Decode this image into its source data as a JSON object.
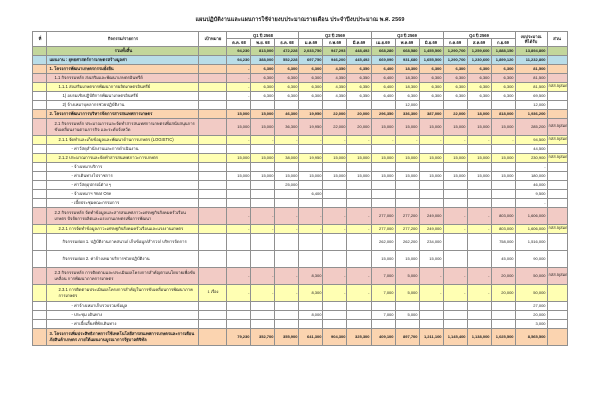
{
  "title": "แผนปฏิบัติงานและแผนการใช้จ่ายงบประมาณรายเดือน ประจำปีงบประมาณ พ.ศ. 2569",
  "table": {
    "headers": {
      "no": "ที่",
      "activity": "กิจกรรม/รายการ",
      "target": "เป้าหมาย",
      "quarters": [
        {
          "label": "Q1 ปี 2568",
          "months": [
            "ต.ค. 68",
            "พ.ย. 68",
            "ธ.ค. 68"
          ]
        },
        {
          "label": "Q2 ปี 2569",
          "months": [
            "ม.ค.69",
            "ก.พ.69",
            "มี.ค.69"
          ]
        },
        {
          "label": "Q3 ปี 2569",
          "months": [
            "เม.ย.69",
            "พ.ค.69",
            "มิ.ย.69"
          ]
        },
        {
          "label": "Q4 ปี 2569",
          "months": [
            "ก.ค.69",
            "ส.ค.69",
            "ก.ย.69"
          ]
        }
      ],
      "budget_line1": "งบประมาณ",
      "budget_line2": "ที่ได้รับ",
      "dept": "ส่วน"
    },
    "rows": [
      {
        "type": "total",
        "indent": 0,
        "two_line": false,
        "no": "",
        "name": "รวมทั้งสิ้น",
        "target": "",
        "values": [
          "94,230",
          "813,000",
          "472,228",
          "2,033,750",
          "947,293",
          "448,492",
          "668,280",
          "668,580",
          "1,455,500",
          "1,290,700",
          "1,259,600",
          "1,888,150"
        ],
        "budget": "13,894,800",
        "note": ""
      },
      {
        "type": "plan",
        "indent": 0,
        "two_line": false,
        "no": "",
        "name": "แผนงาน : ยุทธศาสตร์การเกษตรสร้างมูลค่า",
        "target": "",
        "values": [
          "94,230",
          "388,000",
          "552,228",
          "697,750",
          "946,200",
          "445,492",
          "669,090",
          "931,680",
          "1,655,500",
          "1,290,700",
          "1,230,600",
          "1,899,120"
        ],
        "budget": "11,232,800",
        "note": ""
      },
      {
        "type": "proj",
        "indent": 0,
        "two_line": false,
        "no": "",
        "name": "1. โครงการพัฒนาเกษตรกรรมยั่งยืน",
        "target": "",
        "values": [
          "-",
          "6,300",
          "6,300",
          "6,300",
          "4,350",
          "6,350",
          "6,400",
          "18,300",
          "6,300",
          "6,300",
          "6,300",
          "6,300"
        ],
        "budget": "81,500",
        "note": ""
      },
      {
        "type": "act",
        "indent": 1,
        "two_line": false,
        "no": "",
        "name": "1.1 กิจกรรมหลัก ส่งเสริมและพัฒนาเกษตรอินทรีย์",
        "target": "",
        "values": [
          "-",
          "6,300",
          "6,300",
          "6,300",
          "4,350",
          "6,350",
          "6,400",
          "18,300",
          "6,300",
          "6,300",
          "6,300",
          "6,300"
        ],
        "budget": "81,500",
        "note": ""
      },
      {
        "type": "sub",
        "indent": 2,
        "two_line": false,
        "no": "",
        "name": "1.1.1 ส่งเสริมเกษตรกรพัฒนาการผลิตเกษตรอินทรีย์",
        "target": "",
        "values": [
          "-",
          "6,300",
          "6,300",
          "6,300",
          "4,350",
          "6,350",
          "6,400",
          "18,300",
          "6,300",
          "6,300",
          "6,300",
          "6,300"
        ],
        "budget": "81,500",
        "note": "กสส.5(สมด.)"
      },
      {
        "type": "item",
        "indent": 3,
        "two_line": false,
        "no": "",
        "name": "1) อบรมเชิงปฏิบัติการพัฒนาเกษตรอินทรีย์",
        "target": "",
        "values": [
          "-",
          "6,300",
          "6,300",
          "6,300",
          "4,350",
          "6,350",
          "6,400",
          "6,300",
          "6,300",
          "6,300",
          "6,300",
          "6,300"
        ],
        "budget": "69,500",
        "note": ""
      },
      {
        "type": "item",
        "indent": 3,
        "two_line": false,
        "no": "",
        "name": "2) จ้างเหมาบุคลากรช่วยปฏิบัติงาน",
        "target": "",
        "values": [
          "",
          "",
          "",
          "",
          "",
          "",
          "",
          "12,000",
          "",
          "",
          "",
          ""
        ],
        "budget": "12,000",
        "note": ""
      },
      {
        "type": "proj",
        "indent": 0,
        "two_line": false,
        "no": "",
        "name": "2. โครงการพัฒนาการบริหารจัดการสารสนเทศการเกษตร",
        "target": "",
        "values": [
          "15,000",
          "15,000",
          "46,300",
          "19,950",
          "22,000",
          "20,000",
          "296,350",
          "336,300",
          "387,000",
          "22,000",
          "18,000",
          "818,000"
        ],
        "budget": "1,936,200",
        "note": ""
      },
      {
        "type": "act",
        "indent": 1,
        "two_line": true,
        "no": "",
        "name": "2.1 กิจกรรมหลัก ประมาณการและจัดทำสารสนเทศการเกษตรเพื่อสนับสนุนการขับเคลื่อนงานตามภารกิจ และระดับจังหวัด",
        "target": "",
        "values": [
          "15,000",
          "15,000",
          "36,300",
          "19,950",
          "22,000",
          "20,000",
          "15,000",
          "15,000",
          "15,000",
          "15,000",
          "15,000",
          "15,000"
        ],
        "budget": "285,200",
        "note": "กสส.5(สมด.)"
      },
      {
        "type": "sub",
        "indent": 2,
        "two_line": false,
        "no": "",
        "name": "2.1.1 จัดทำและเก็บข้อมูลและพัฒนาด้านการเกษตร (LOGISTIC)",
        "target": "",
        "values": [
          "-",
          "-",
          "-",
          "-",
          "-",
          "-",
          "-",
          "-",
          "-",
          "-",
          "-",
          "-"
        ],
        "budget": "94,500",
        "note": "กสส.5(สมด.)"
      },
      {
        "type": "item",
        "indent": 4,
        "two_line": false,
        "no": "",
        "name": "- ค่าวัสดุสำนักงานและการดำเนินงาน",
        "target": "",
        "values": [
          "",
          "",
          "",
          "",
          "",
          "",
          "",
          "",
          "",
          "",
          "",
          ""
        ],
        "budget": "44,500",
        "note": ""
      },
      {
        "type": "sub",
        "indent": 2,
        "two_line": false,
        "no": "",
        "name": "2.1.2 ประมาณการและจัดทำสารสนเทศภาวะการเกษตร",
        "target": "",
        "values": [
          "15,000",
          "15,000",
          "38,000",
          "19,950",
          "15,000",
          "15,000",
          "15,000",
          "15,000",
          "15,000",
          "15,000",
          "15,000",
          "15,000"
        ],
        "budget": "230,900",
        "note": "กสส.5(สมด.)"
      },
      {
        "type": "item",
        "indent": 4,
        "two_line": false,
        "no": "",
        "name": "- จ้างเหมาบริการ",
        "target": "",
        "values": [
          "",
          "",
          "",
          "",
          "",
          "",
          "",
          "",
          "",
          "",
          "",
          ""
        ],
        "budget": "-",
        "note": ""
      },
      {
        "type": "item",
        "indent": 4,
        "two_line": false,
        "no": "",
        "name": "- ค่าเดินทางไปราชการ",
        "target": "",
        "values": [
          "15,000",
          "15,000",
          "15,000",
          "15,000",
          "15,000",
          "15,000",
          "15,000",
          "15,000",
          "15,000",
          "15,000",
          "15,000",
          "15,000"
        ],
        "budget": "180,000",
        "note": ""
      },
      {
        "type": "item",
        "indent": 4,
        "two_line": false,
        "no": "",
        "name": "- ค่าวัสดุอุปกรณ์ต่าง ๆ",
        "target": "",
        "values": [
          "",
          "",
          "25,000",
          "",
          "",
          "",
          "",
          "",
          "",
          "",
          "",
          ""
        ],
        "budget": "46,000",
        "note": ""
      },
      {
        "type": "item",
        "indent": 4,
        "two_line": false,
        "no": "",
        "name": "- จ้างเหมาฯ Year One",
        "target": "",
        "values": [
          "",
          "",
          "",
          "6,400",
          "",
          "",
          "",
          "",
          "",
          "",
          "",
          ""
        ],
        "budget": "9,500",
        "note": ""
      },
      {
        "type": "item",
        "indent": 4,
        "two_line": false,
        "no": "",
        "name": "- เบี้ยประชุมคณะกรรมการ",
        "target": "",
        "values": [
          "",
          "",
          "",
          "",
          "",
          "",
          "",
          "",
          "",
          "",
          "",
          ""
        ],
        "budget": "-",
        "note": ""
      },
      {
        "type": "act",
        "indent": 1,
        "two_line": true,
        "no": "",
        "name": "2.2 กิจกรรมหลัก จัดทำข้อมูลและสารสนเทศภาวะเศรษฐกิจสังคมครัวเรือนเกษตร ปัจจัยการผลิตและแรงงานเกษตรเพื่อการพัฒนา",
        "target": "",
        "values": [
          "-",
          "-",
          "-",
          "-",
          "-",
          "-",
          "277,000",
          "277,200",
          "249,000",
          "-",
          "-",
          "803,000"
        ],
        "budget": "1,606,000",
        "note": ""
      },
      {
        "type": "sub",
        "indent": 2,
        "two_line": false,
        "no": "",
        "name": "2.2.1 การจัดทำข้อมูลภาวะเศรษฐกิจสังคมครัวเรือนและแรงงานเกษตร",
        "target": "",
        "values": [
          "-",
          "-",
          "-",
          "-",
          "-",
          "-",
          "277,000",
          "277,200",
          "249,000",
          "-",
          "-",
          "803,000"
        ],
        "budget": "1,606,000",
        "note": "กสส.5(สมด.)"
      },
      {
        "type": "item",
        "indent": 3,
        "two_line": true,
        "no": "",
        "name": "กิจกรรมย่อย 1. ปฏิบัติงานภาคสนาม/ เก็บข้อมูล/สำรวจ/ บริหารจัดการ",
        "target": "",
        "values": [
          "",
          "",
          "",
          "",
          "",
          "",
          "262,000",
          "262,200",
          "234,000",
          "",
          "",
          "758,000"
        ],
        "budget": "1,516,000",
        "note": ""
      },
      {
        "type": "item",
        "indent": 3,
        "two_line": true,
        "no": "",
        "name": "กิจกรรมย่อย 2. ค่าจ้างเหมาบริการช่วยปฏิบัติงาน",
        "target": "",
        "values": [
          "",
          "",
          "",
          "",
          "",
          "",
          "15,000",
          "15,000",
          "15,000",
          "",
          "",
          "45,000"
        ],
        "budget": "90,000",
        "note": ""
      },
      {
        "type": "act",
        "indent": 1,
        "two_line": true,
        "no": "",
        "name": "2.3 กิจกรรมหลัก การติดตามและประเมินผลโครงการสำคัญตามนโยบายเพื่อขับเคลื่อน การพัฒนาภาคการเกษตร",
        "target": "",
        "values": [
          "-",
          "-",
          "-",
          "8,300",
          "-",
          "-",
          "7,000",
          "5,000",
          "-",
          "-",
          "-",
          "20,000"
        ],
        "budget": "50,000",
        "note": "กสส.5(สมด.)"
      },
      {
        "type": "sub",
        "indent": 2,
        "two_line": true,
        "no": "",
        "name": "2.3.1 การติดตามประเมินผลโครงการสำคัญในการขับเคลื่อนการพัฒนาภาค การเกษตร",
        "target": "1 เรื่อง",
        "values": [
          "-",
          "-",
          "-",
          "8,300",
          "-",
          "-",
          "7,000",
          "5,000",
          "-",
          "-",
          "-",
          "20,000"
        ],
        "budget": "50,000",
        "note": ""
      },
      {
        "type": "item",
        "indent": 4,
        "two_line": false,
        "no": "",
        "name": "- ค่าจ้างเหมาเก็บรวบรวมข้อมูล",
        "target": "",
        "values": [
          "",
          "",
          "",
          "",
          "",
          "",
          "",
          "",
          "",
          "",
          "",
          ""
        ],
        "budget": "27,000",
        "note": ""
      },
      {
        "type": "item",
        "indent": 4,
        "two_line": false,
        "no": "",
        "name": "- ประชุม เดินทาง",
        "target": "",
        "values": [
          "",
          "",
          "",
          "8,000",
          "",
          "",
          "7,000",
          "5,000",
          "",
          "",
          "",
          ""
        ],
        "budget": "20,000",
        "note": ""
      },
      {
        "type": "item",
        "indent": 4,
        "two_line": false,
        "no": "",
        "name": "- ค่าเบี้ยเลี้ยงที่พักเดินทาง",
        "target": "",
        "values": [
          "",
          "",
          "",
          "",
          "",
          "",
          "",
          "",
          "",
          "",
          "",
          ""
        ],
        "budget": "3,000",
        "note": ""
      },
      {
        "type": "proj",
        "indent": 0,
        "two_line": true,
        "no": "",
        "name": "3. โครงการเพิ่มประสิทธิภาพการใช้เทคโนโลยีสารสนเทศการเกษตรและการเตือนภัยสินค้าเกษตร ภายใต้แผนงานบูรณาการรัฐบาลดิจิทัล",
        "target": "",
        "values": [
          "79,230",
          "352,700",
          "355,900",
          "641,300",
          "904,300",
          "325,300",
          "409,100",
          "897,700",
          "1,211,100",
          "1,145,400",
          "1,138,000",
          "1,025,500"
        ],
        "budget": "8,565,500",
        "note": ""
      }
    ]
  }
}
